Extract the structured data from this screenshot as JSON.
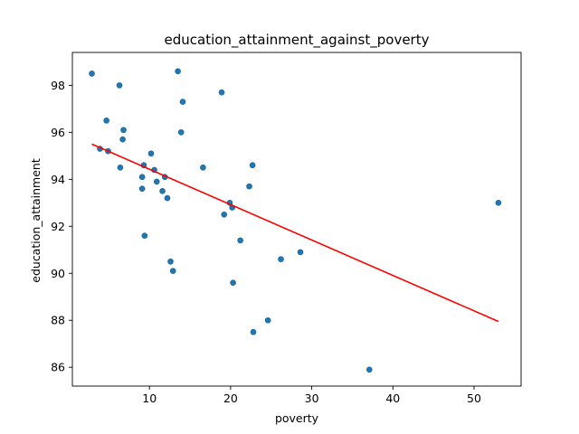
{
  "chart_data": {
    "type": "scatter",
    "title": "education_attainment_against_poverty",
    "xlabel": "poverty",
    "ylabel": "education_attainment",
    "xlim": [
      0.5,
      55.8
    ],
    "ylim": [
      85.2,
      99.4
    ],
    "xticks": [
      10,
      20,
      30,
      40,
      50
    ],
    "yticks": [
      86,
      88,
      90,
      92,
      94,
      96,
      98
    ],
    "grid": false,
    "point_color": "#1f77b4",
    "line_color": "#ff0000",
    "points": [
      {
        "x": 2.9,
        "y": 98.5
      },
      {
        "x": 6.3,
        "y": 98.0
      },
      {
        "x": 13.5,
        "y": 98.6
      },
      {
        "x": 14.1,
        "y": 97.3
      },
      {
        "x": 18.9,
        "y": 97.7
      },
      {
        "x": 4.7,
        "y": 96.5
      },
      {
        "x": 6.8,
        "y": 96.1
      },
      {
        "x": 13.9,
        "y": 96.0
      },
      {
        "x": 6.7,
        "y": 95.7
      },
      {
        "x": 3.9,
        "y": 95.3
      },
      {
        "x": 4.9,
        "y": 95.2
      },
      {
        "x": 10.2,
        "y": 95.1
      },
      {
        "x": 9.3,
        "y": 94.6
      },
      {
        "x": 22.7,
        "y": 94.6
      },
      {
        "x": 6.4,
        "y": 94.5
      },
      {
        "x": 16.6,
        "y": 94.5
      },
      {
        "x": 10.6,
        "y": 94.4
      },
      {
        "x": 9.1,
        "y": 94.1
      },
      {
        "x": 11.9,
        "y": 94.1
      },
      {
        "x": 10.9,
        "y": 93.9
      },
      {
        "x": 22.3,
        "y": 93.7
      },
      {
        "x": 9.1,
        "y": 93.6
      },
      {
        "x": 11.6,
        "y": 93.5
      },
      {
        "x": 12.2,
        "y": 93.2
      },
      {
        "x": 19.9,
        "y": 93.0
      },
      {
        "x": 20.2,
        "y": 92.8
      },
      {
        "x": 53.0,
        "y": 93.0
      },
      {
        "x": 19.2,
        "y": 92.5
      },
      {
        "x": 9.4,
        "y": 91.6
      },
      {
        "x": 21.2,
        "y": 91.4
      },
      {
        "x": 28.6,
        "y": 90.9
      },
      {
        "x": 26.2,
        "y": 90.6
      },
      {
        "x": 12.6,
        "y": 90.5
      },
      {
        "x": 12.9,
        "y": 90.1
      },
      {
        "x": 20.3,
        "y": 89.6
      },
      {
        "x": 24.6,
        "y": 88.0
      },
      {
        "x": 22.8,
        "y": 87.5
      },
      {
        "x": 37.1,
        "y": 85.9
      }
    ],
    "regression_line": {
      "start": {
        "x": 2.9,
        "y": 95.5
      },
      "end": {
        "x": 53.0,
        "y": 87.95
      }
    }
  }
}
